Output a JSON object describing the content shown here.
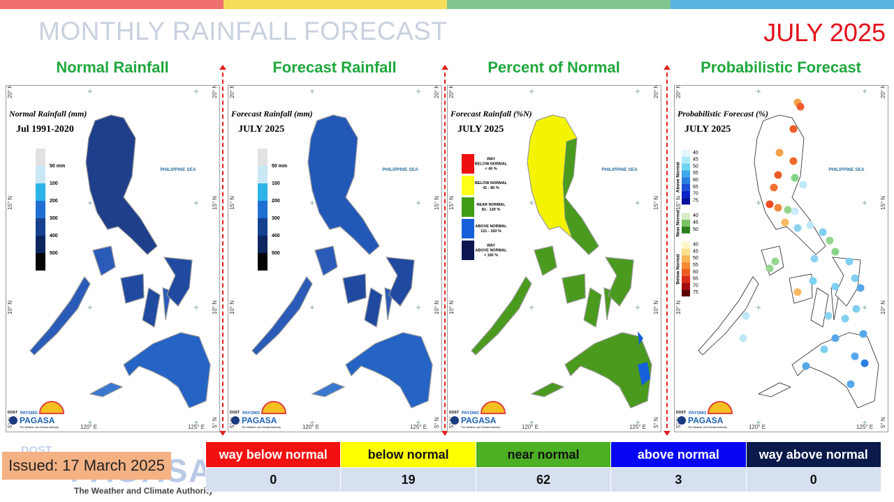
{
  "header": {
    "title": "MONTHLY RAINFALL FORECAST",
    "period": "JULY 2025"
  },
  "panels": [
    {
      "title": "Normal Rainfall",
      "map_title": "Normal Rainfall (mm)",
      "map_subtitle": "Jul 1991-2020",
      "legend": [
        "50 mm",
        "100",
        "200",
        "300",
        "400",
        "500"
      ]
    },
    {
      "title": "Forecast Rainfall",
      "map_title": "Forecast Rainfall (mm)",
      "map_subtitle": "JULY 2025",
      "legend": [
        "50 mm",
        "100",
        "200",
        "300",
        "400",
        "500"
      ]
    },
    {
      "title": "Percent of Normal",
      "map_title": "Forecast Rainfall (%N)",
      "map_subtitle": "JULY 2025",
      "legend": [
        [
          "WAY",
          "BELOW NORMAL",
          "< 40 %"
        ],
        [
          "BELOW NORMAL",
          "41 - 80 %"
        ],
        [
          "NEAR NORMAL",
          "81 - 120 %"
        ],
        [
          "ABOVE NORMAL",
          "121 - 160 %"
        ],
        [
          "WAY",
          "ABOVE NORMAL",
          "> 160 %"
        ]
      ]
    },
    {
      "title": "Probabilistic Forecast",
      "map_title": "Probabilistic Forecast (%)",
      "map_subtitle": "JULY 2025",
      "legend_groups": [
        {
          "label": "Above Normal",
          "ticks": [
            40,
            45,
            50,
            55,
            60,
            65,
            70,
            75
          ]
        },
        {
          "label": "Near Normal",
          "ticks": [
            40,
            45,
            50
          ]
        },
        {
          "label": "Below Normal",
          "ticks": [
            40,
            45,
            50,
            55,
            60,
            65,
            70,
            75
          ]
        }
      ]
    }
  ],
  "map_labels": {
    "sea": "PHILIPPINE SEA",
    "lat": [
      "20° N",
      "15° N",
      "10° N",
      "5° N"
    ],
    "lon": [
      "120° E",
      "125° E"
    ],
    "logo_agency": "DOST",
    "logo_program": "PAYONG",
    "logo_brand": "PAGASA",
    "logo_tagline": "The Weather and Climate Authority"
  },
  "issued": "Issued: 17 March 2025",
  "footer_logo": {
    "agency": "DOST",
    "brand": "PAGASA",
    "tagline": "The Weather and Climate Authority"
  },
  "table": {
    "header": [
      "way below normal",
      "below normal",
      "near normal",
      "above normal",
      "way above normal"
    ],
    "rows": [
      [
        0,
        19,
        62,
        3,
        0
      ]
    ]
  }
}
